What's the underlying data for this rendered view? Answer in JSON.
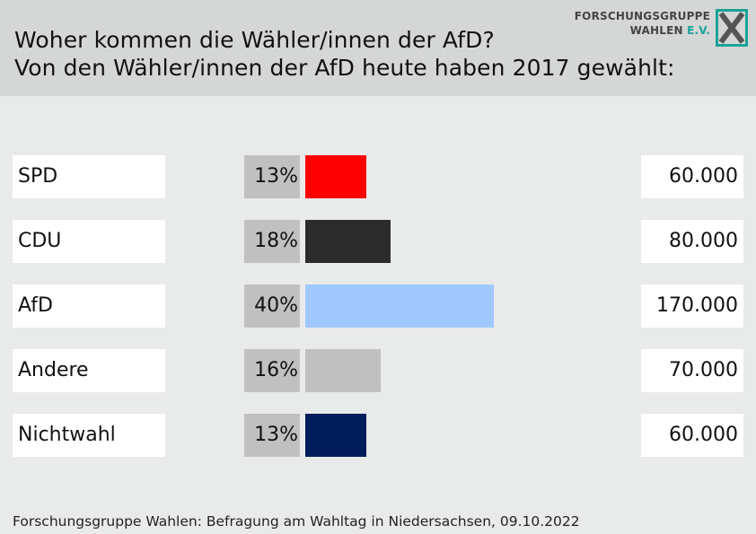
{
  "header": {
    "title_line1": "Woher kommen die Wähler/innen der AfD?",
    "title_line2": "Von den Wähler/innen der AfD heute haben 2017 gewählt:",
    "logo_line1": "FORSCHUNGSGRUPPE",
    "logo_line2_a": "WAHLEN ",
    "logo_line2_b": "E.V."
  },
  "colors": {
    "header_bg": "#d5d6d6",
    "page_bg": "#e9ebea",
    "logo_accent": "#1aa39a"
  },
  "chart_data": {
    "type": "bar",
    "title": "Woher kommen die Wähler/innen der AfD?",
    "subtitle": "Von den Wähler/innen der AfD heute haben 2017 gewählt:",
    "categories": [
      "SPD",
      "CDU",
      "AfD",
      "Andere",
      "Nichtwahl"
    ],
    "values": [
      13,
      18,
      40,
      16,
      13
    ],
    "value_labels": [
      "13%",
      "18%",
      "40%",
      "16%",
      "13%"
    ],
    "absolute_labels": [
      "60.000",
      "80.000",
      "170.000",
      "70.000",
      "60.000"
    ],
    "colors": [
      "#ff0000",
      "#2b2b2b",
      "#a0c8ff",
      "#c0c0c0",
      "#001c5a"
    ],
    "orientation": "horizontal",
    "grid": false
  },
  "footer": {
    "source": "Forschungsgruppe Wahlen: Befragung am Wahltag in Niedersachsen, 09.10.2022"
  }
}
